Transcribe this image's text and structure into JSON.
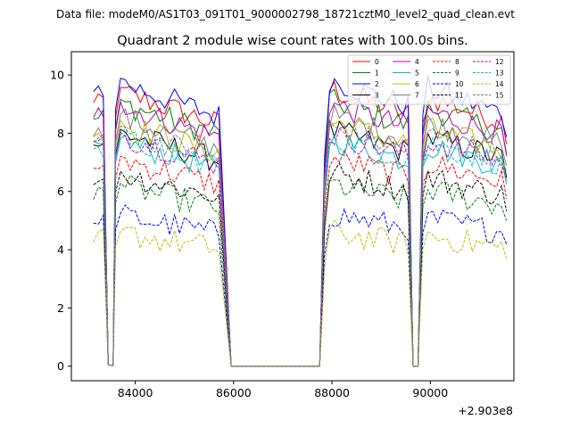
{
  "chart_data": {
    "type": "line",
    "suptitle": "Data file: modeM0/AS1T03_091T01_9000002798_18721cztM0_level2_quad_clean.evt",
    "title": "Quadrant 2 module wise count rates with 100.0s bins.",
    "xlabel": "",
    "ylabel": "",
    "x_offset_label": "+2.903e8",
    "xlim": [
      82700,
      91700
    ],
    "ylim": [
      -0.5,
      10.8
    ],
    "x_ticks": [
      84000,
      86000,
      88000,
      90000
    ],
    "x_tick_labels": [
      "84000",
      "86000",
      "88000",
      "90000"
    ],
    "y_ticks": [
      0,
      2,
      4,
      6,
      8,
      10
    ],
    "y_tick_labels": [
      "0",
      "2",
      "4",
      "6",
      "8",
      "10"
    ],
    "grid": false,
    "legend_position": "top-right",
    "segments": [
      {
        "start": 83150,
        "end": 83350
      },
      {
        "start": 83600,
        "end": 85750
      },
      {
        "start": 87850,
        "end": 89550
      },
      {
        "start": 89850,
        "end": 91550
      }
    ],
    "gaps_x": [
      83450,
      83550,
      85950,
      87750,
      89650,
      89750
    ],
    "series": [
      {
        "name": "0",
        "color": "#ff0000",
        "dash": false,
        "level": 9.3
      },
      {
        "name": "1",
        "color": "#008000",
        "dash": false,
        "level": 8.9
      },
      {
        "name": "2",
        "color": "#0000ff",
        "dash": false,
        "level": 9.6
      },
      {
        "name": "3",
        "color": "#000000",
        "dash": false,
        "level": 7.9
      },
      {
        "name": "4",
        "color": "#bf00bf",
        "dash": false,
        "level": 8.8
      },
      {
        "name": "5",
        "color": "#00bfbf",
        "dash": false,
        "level": 7.6
      },
      {
        "name": "6",
        "color": "#bfbf00",
        "dash": false,
        "level": 8.2
      },
      {
        "name": "7",
        "color": "#808080",
        "dash": false,
        "level": 8.4
      },
      {
        "name": "8",
        "color": "#ff0000",
        "dash": true,
        "level": 7.0
      },
      {
        "name": "9",
        "color": "#008000",
        "dash": true,
        "level": 6.1
      },
      {
        "name": "10",
        "color": "#0000ff",
        "dash": true,
        "level": 5.1
      },
      {
        "name": "11",
        "color": "#000000",
        "dash": true,
        "level": 6.5
      },
      {
        "name": "12",
        "color": "#bf00bf",
        "dash": true,
        "level": 7.8
      },
      {
        "name": "13",
        "color": "#00bfbf",
        "dash": true,
        "level": 7.7
      },
      {
        "name": "14",
        "color": "#bfbf00",
        "dash": true,
        "level": 4.5
      },
      {
        "name": "15",
        "color": "#808080",
        "dash": true,
        "level": 8.0
      }
    ]
  }
}
